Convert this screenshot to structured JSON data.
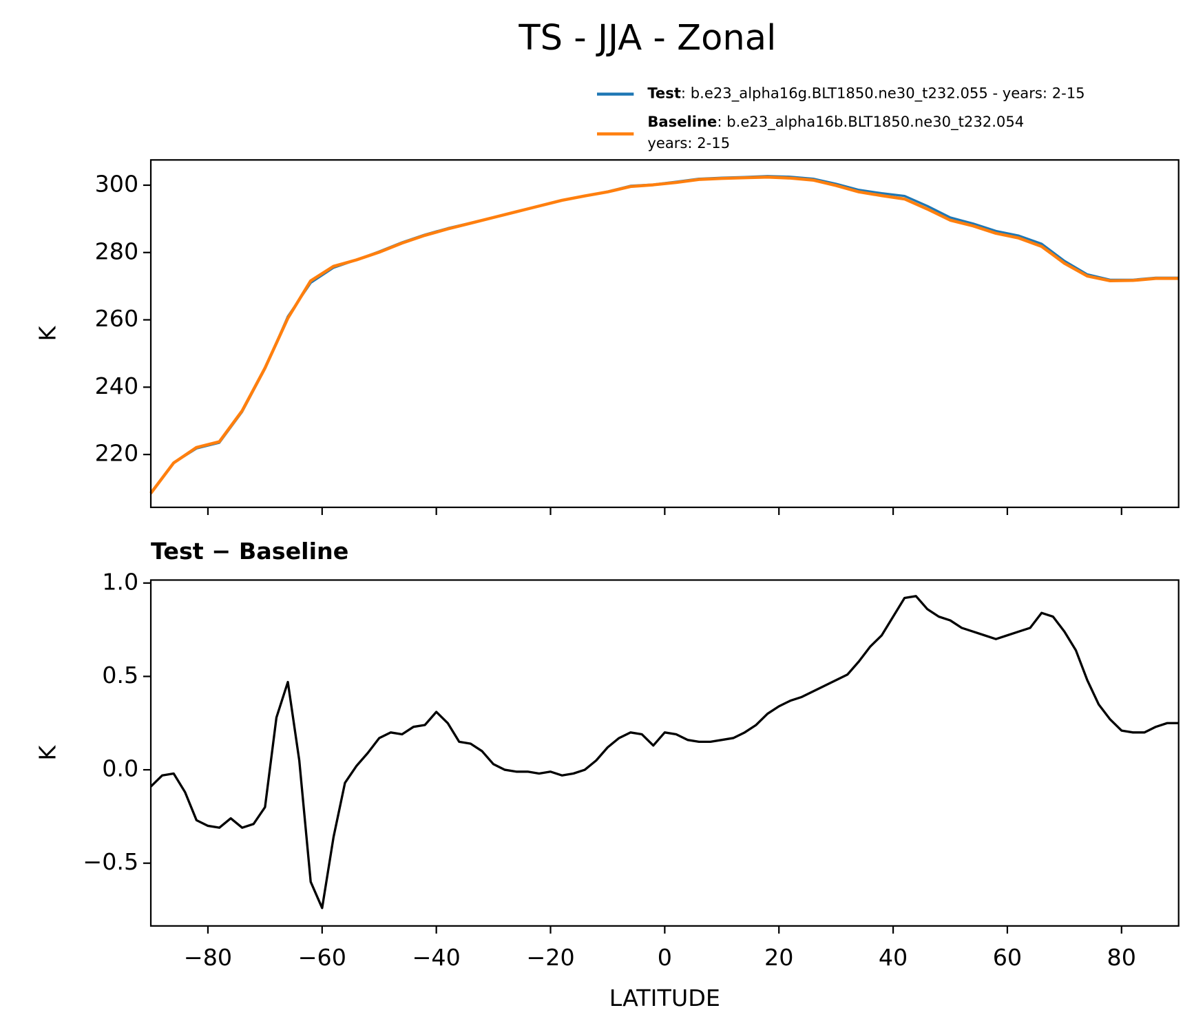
{
  "chart_data": [
    {
      "type": "line",
      "title": "TS - JJA - Zonal",
      "ylabel": "K",
      "xlim": [
        -90,
        90
      ],
      "ylim": [
        204.3,
        307.5
      ],
      "xticks": [
        -80,
        -60,
        -40,
        -20,
        0,
        20,
        40,
        60,
        80
      ],
      "xticklabels_shown": false,
      "yticks": [
        220,
        240,
        260,
        280,
        300
      ],
      "legend": "upper right",
      "x": [
        -90,
        -86,
        -82,
        -78,
        -74,
        -70,
        -66,
        -62,
        -58,
        -54,
        -50,
        -46,
        -42,
        -38,
        -34,
        -30,
        -26,
        -22,
        -18,
        -14,
        -10,
        -6,
        -2,
        2,
        6,
        10,
        14,
        18,
        22,
        26,
        30,
        34,
        38,
        42,
        46,
        50,
        54,
        58,
        62,
        66,
        70,
        74,
        78,
        82,
        86,
        90
      ],
      "series": [
        {
          "name": "Test",
          "detail": [
            ": b.e23_alpha16g.BLT1850.ne30_t232.055 - years: 2-15"
          ],
          "color": "#1f77b4",
          "values": [
            208.4,
            217.5,
            221.8,
            223.5,
            232.7,
            245.5,
            261,
            271,
            275.5,
            277.8,
            280.3,
            283,
            285.3,
            287.2,
            288.8,
            290.4,
            292.1,
            293.8,
            295.5,
            296.8,
            298.1,
            299.8,
            300.2,
            301,
            301.9,
            302.2,
            302.4,
            302.7,
            302.5,
            301.9,
            300.4,
            298.6,
            297.6,
            296.8,
            293.8,
            290.4,
            288.6,
            286.4,
            285,
            282.6,
            277.5,
            273.5,
            271.9,
            271.9,
            272.5,
            272.5
          ]
        },
        {
          "name": "Baseline",
          "detail": [
            ": b.e23_alpha16b.BLT1850.ne30_t232.054",
            "years: 2-15"
          ],
          "color": "#ff7f0e",
          "values": [
            208.5,
            217.5,
            222.1,
            223.8,
            233.0,
            245.7,
            260.5,
            271.6,
            275.9,
            277.8,
            280.1,
            282.8,
            285.1,
            287.0,
            288.7,
            290.4,
            292.1,
            293.8,
            295.5,
            296.8,
            298.0,
            299.6,
            300.1,
            300.8,
            301.7,
            302.0,
            302.2,
            302.4,
            302.1,
            301.5,
            299.9,
            298.0,
            296.9,
            295.9,
            292.9,
            289.6,
            287.9,
            285.7,
            284.3,
            281.8,
            276.8,
            273.0,
            271.6,
            271.7,
            272.3,
            272.3
          ]
        }
      ]
    },
    {
      "type": "line",
      "title": "Test − Baseline",
      "ylabel": "K",
      "xlabel": "LATITUDE",
      "xlim": [
        -90,
        90
      ],
      "ylim": [
        -0.836,
        1.016
      ],
      "xticks": [
        {
          "value": -80,
          "label": "−80"
        },
        {
          "value": -60,
          "label": "−60"
        },
        {
          "value": -40,
          "label": "−40"
        },
        {
          "value": -20,
          "label": "−20"
        },
        0,
        20,
        40,
        60,
        80
      ],
      "xticklabels_shown": true,
      "yticks": [
        {
          "value": -0.5,
          "label": "−0.5"
        },
        {
          "value": 0,
          "label": "0.0"
        },
        0.5,
        {
          "value": 1,
          "label": "1.0"
        }
      ],
      "x": [
        -90,
        -88,
        -86,
        -84,
        -82,
        -80,
        -78,
        -76,
        -74,
        -72,
        -70,
        -68,
        -66,
        -64,
        -62,
        -60,
        -58,
        -56,
        -54,
        -52,
        -50,
        -48,
        -46,
        -44,
        -42,
        -40,
        -38,
        -36,
        -34,
        -32,
        -30,
        -28,
        -26,
        -24,
        -22,
        -20,
        -18,
        -16,
        -14,
        -12,
        -10,
        -8,
        -6,
        -4,
        -2,
        0,
        2,
        4,
        6,
        8,
        10,
        12,
        14,
        16,
        18,
        20,
        22,
        24,
        26,
        28,
        30,
        32,
        34,
        36,
        38,
        40,
        42,
        44,
        46,
        48,
        50,
        52,
        54,
        56,
        58,
        60,
        62,
        64,
        66,
        68,
        70,
        72,
        74,
        76,
        78,
        80,
        82,
        84,
        86,
        88,
        90
      ],
      "series": [
        {
          "color": "#000000",
          "values": [
            -0.09,
            -0.03,
            -0.02,
            -0.12,
            -0.27,
            -0.3,
            -0.31,
            -0.26,
            -0.31,
            -0.29,
            -0.2,
            0.28,
            0.47,
            0.05,
            -0.6,
            -0.74,
            -0.36,
            -0.07,
            0.02,
            0.09,
            0.17,
            0.2,
            0.19,
            0.23,
            0.24,
            0.31,
            0.25,
            0.15,
            0.14,
            0.1,
            0.03,
            0.0,
            -0.01,
            -0.01,
            -0.02,
            -0.01,
            -0.03,
            -0.02,
            0.0,
            0.05,
            0.12,
            0.17,
            0.2,
            0.19,
            0.13,
            0.2,
            0.19,
            0.16,
            0.15,
            0.15,
            0.16,
            0.17,
            0.2,
            0.24,
            0.3,
            0.34,
            0.37,
            0.39,
            0.42,
            0.45,
            0.48,
            0.51,
            0.58,
            0.66,
            0.72,
            0.82,
            0.92,
            0.93,
            0.86,
            0.82,
            0.8,
            0.76,
            0.74,
            0.72,
            0.7,
            0.72,
            0.74,
            0.76,
            0.84,
            0.82,
            0.74,
            0.64,
            0.48,
            0.35,
            0.27,
            0.21,
            0.2,
            0.2,
            0.23,
            0.25,
            0.25
          ]
        }
      ]
    }
  ]
}
